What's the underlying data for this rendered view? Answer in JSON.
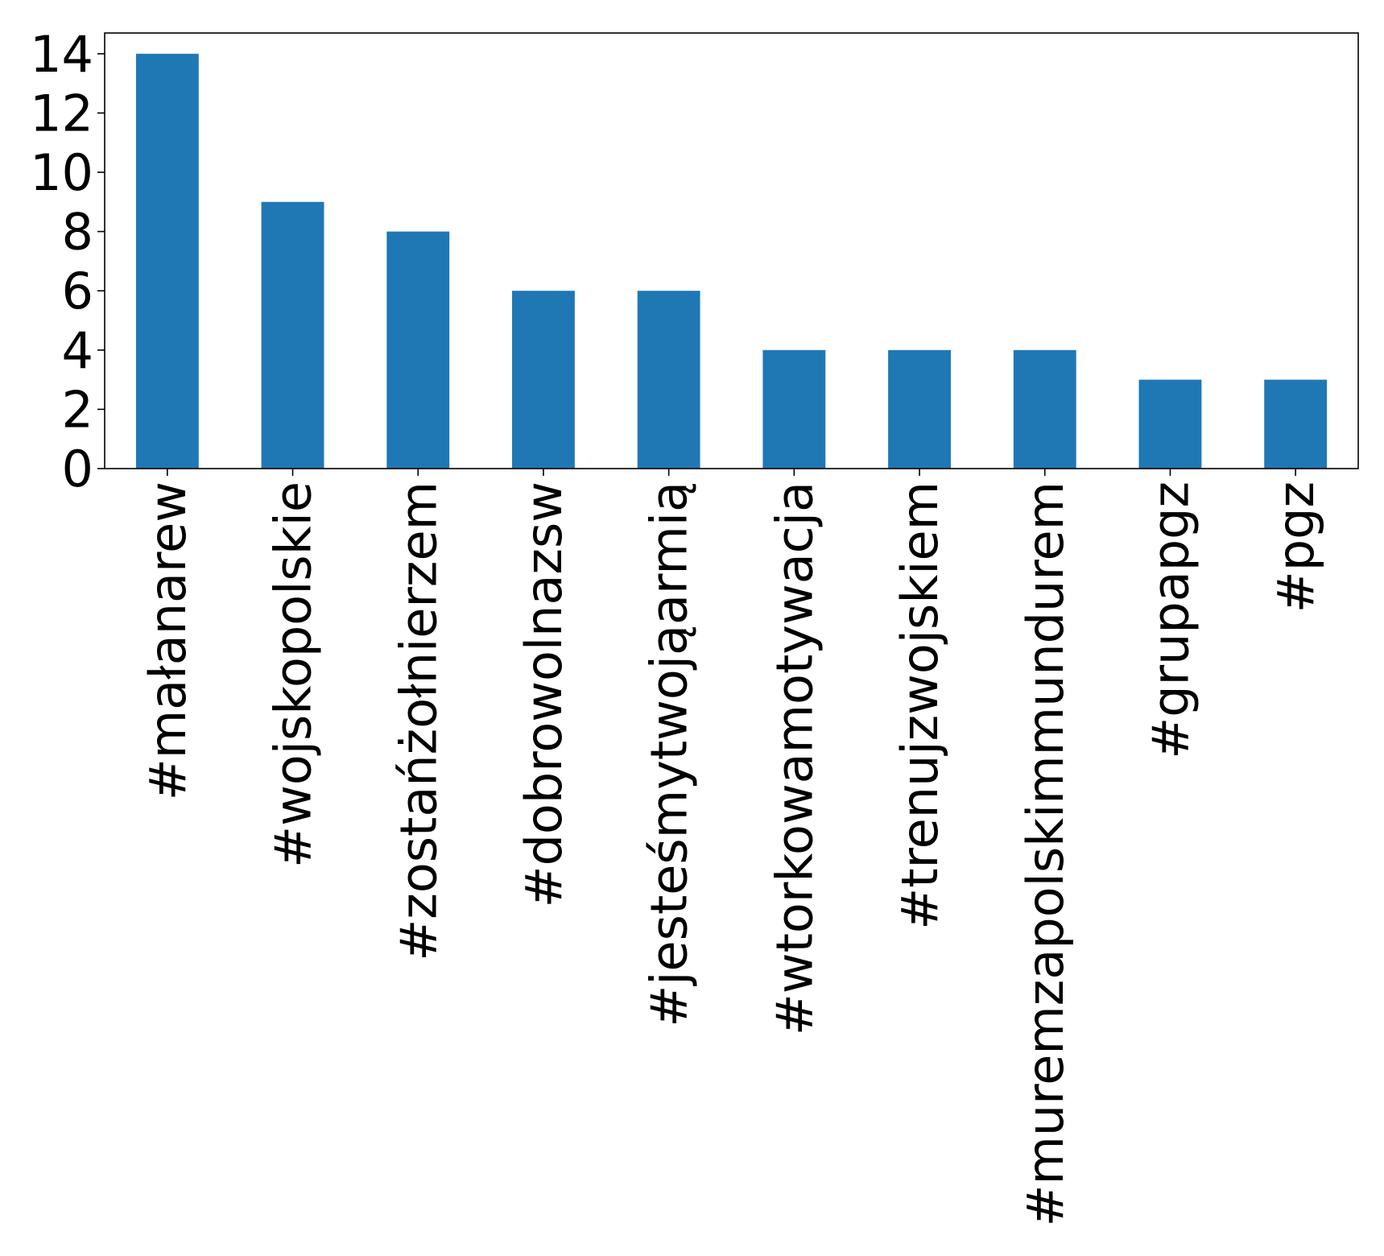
{
  "chart_data": {
    "type": "bar",
    "categories": [
      "#małanarew",
      "#wojskopolskie",
      "#zostańżołnierzem",
      "#dobrowolnazsw",
      "#jesteśmytwojąarmią",
      "#wtorkowamotywacja",
      "#trenujzwojskiem",
      "#muremzapolskimmundurem",
      "#grupapgz",
      "#pgz"
    ],
    "values": [
      14,
      9,
      8,
      6,
      6,
      4,
      4,
      4,
      3,
      3
    ],
    "yticks": [
      "0",
      "2",
      "4",
      "6",
      "8",
      "10",
      "12",
      "14"
    ],
    "ylim": [
      0,
      14.7
    ],
    "grid": false,
    "legend": "none",
    "bar_color": "#1f77b4"
  }
}
